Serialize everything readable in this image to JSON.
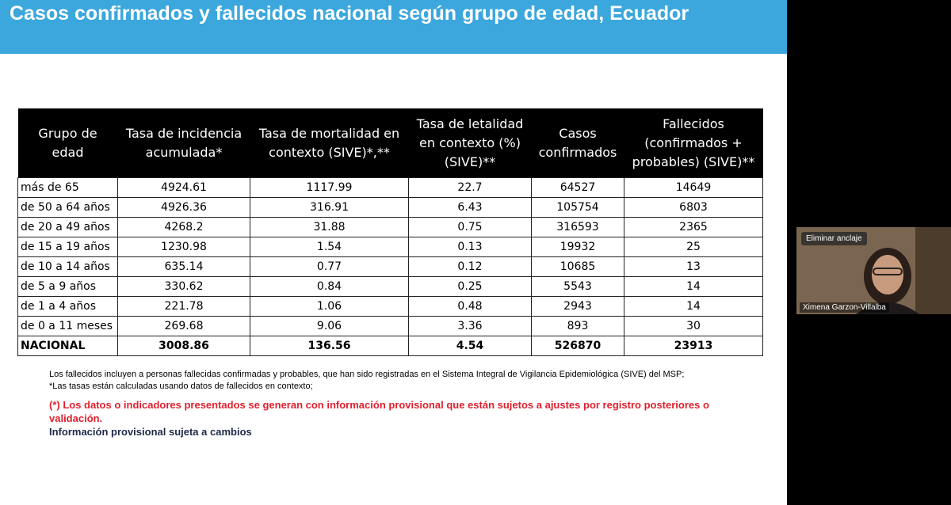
{
  "header": {
    "title": "Casos confirmados y fallecidos nacional según grupo de edad, Ecuador"
  },
  "table": {
    "columns": [
      "Grupo de edad",
      "Tasa de incidencia acumulada*",
      "Tasa de mortalidad en contexto (SIVE)*,**",
      "Tasa de letalidad en contexto (%) (SIVE)**",
      "Casos confirmados",
      "Fallecidos (confirmados + probables) (SIVE)**"
    ],
    "rows": [
      [
        "más de 65",
        "4924.61",
        "1117.99",
        "22.7",
        "64527",
        "14649"
      ],
      [
        "de 50 a 64 años",
        "4926.36",
        "316.91",
        "6.43",
        "105754",
        "6803"
      ],
      [
        "de 20 a 49 años",
        "4268.2",
        "31.88",
        "0.75",
        "316593",
        "2365"
      ],
      [
        "de 15 a 19 años",
        "1230.98",
        "1.54",
        "0.13",
        "19932",
        "25"
      ],
      [
        "de 10 a 14 años",
        "635.14",
        "0.77",
        "0.12",
        "10685",
        "13"
      ],
      [
        "de 5 a 9 años",
        "330.62",
        "0.84",
        "0.25",
        "5543",
        "14"
      ],
      [
        "de 1 a 4 años",
        "221.78",
        "1.06",
        "0.48",
        "2943",
        "14"
      ],
      [
        "de 0 a 11 meses",
        "269.68",
        "9.06",
        "3.36",
        "893",
        "30"
      ],
      [
        "NACIONAL",
        "3008.86",
        "136.56",
        "4.54",
        "526870",
        "23913"
      ]
    ]
  },
  "notes": [
    "Los fallecidos incluyen a personas fallecidas confirmadas y probables, que han sido registradas en el Sistema Integral de Vigilancia Epidemiológica (SIVE) del MSP;",
    "*Las tasas están calculadas usando datos de fallecidos en contexto;"
  ],
  "warning": "(*) Los datos o indicadores presentados se generan con información provisional que están sujetos a ajustes por registro posteriores o validación.",
  "provisional": "Información provisional sujeta a cambios",
  "video": {
    "button": "Eliminar anclaje",
    "name": "Ximena Garzon-Villalba"
  }
}
